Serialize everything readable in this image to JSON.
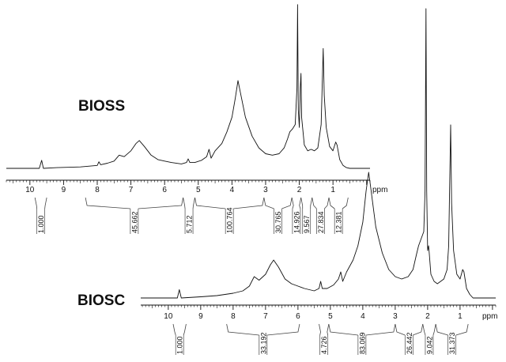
{
  "chart_data": [
    {
      "type": "line",
      "sample_label": "BIOSS",
      "axis_unit": "ppm",
      "x_reversed": true,
      "xlim": [
        10.7,
        -0.1
      ],
      "x_ticks": [
        10,
        9,
        8,
        7,
        6,
        5,
        4,
        3,
        2,
        1
      ],
      "spectrum": [
        [
          10.7,
          0.0
        ],
        [
          10.0,
          0.0
        ],
        [
          9.72,
          0.0
        ],
        [
          9.65,
          0.055
        ],
        [
          9.6,
          0.0
        ],
        [
          9.2,
          0.005
        ],
        [
          8.5,
          0.01
        ],
        [
          8.0,
          0.02
        ],
        [
          7.95,
          0.045
        ],
        [
          7.9,
          0.025
        ],
        [
          7.7,
          0.035
        ],
        [
          7.5,
          0.05
        ],
        [
          7.35,
          0.09
        ],
        [
          7.2,
          0.08
        ],
        [
          7.0,
          0.12
        ],
        [
          6.85,
          0.17
        ],
        [
          6.75,
          0.19
        ],
        [
          6.6,
          0.15
        ],
        [
          6.4,
          0.09
        ],
        [
          6.2,
          0.06
        ],
        [
          6.0,
          0.05
        ],
        [
          5.8,
          0.04
        ],
        [
          5.5,
          0.03
        ],
        [
          5.35,
          0.04
        ],
        [
          5.3,
          0.065
        ],
        [
          5.25,
          0.04
        ],
        [
          5.1,
          0.04
        ],
        [
          4.9,
          0.055
        ],
        [
          4.75,
          0.08
        ],
        [
          4.68,
          0.13
        ],
        [
          4.62,
          0.07
        ],
        [
          4.5,
          0.12
        ],
        [
          4.3,
          0.17
        ],
        [
          4.15,
          0.25
        ],
        [
          4.0,
          0.35
        ],
        [
          3.9,
          0.48
        ],
        [
          3.82,
          0.6
        ],
        [
          3.75,
          0.52
        ],
        [
          3.6,
          0.35
        ],
        [
          3.4,
          0.22
        ],
        [
          3.2,
          0.14
        ],
        [
          3.0,
          0.1
        ],
        [
          2.8,
          0.09
        ],
        [
          2.6,
          0.1
        ],
        [
          2.45,
          0.14
        ],
        [
          2.35,
          0.2
        ],
        [
          2.28,
          0.25
        ],
        [
          2.2,
          0.27
        ],
        [
          2.12,
          0.3
        ],
        [
          2.07,
          0.55
        ],
        [
          2.05,
          1.12
        ],
        [
          2.03,
          0.4
        ],
        [
          2.0,
          0.28
        ],
        [
          1.97,
          0.55
        ],
        [
          1.95,
          0.65
        ],
        [
          1.93,
          0.35
        ],
        [
          1.85,
          0.16
        ],
        [
          1.75,
          0.12
        ],
        [
          1.65,
          0.13
        ],
        [
          1.55,
          0.12
        ],
        [
          1.45,
          0.14
        ],
        [
          1.35,
          0.3
        ],
        [
          1.29,
          0.82
        ],
        [
          1.26,
          0.5
        ],
        [
          1.2,
          0.28
        ],
        [
          1.1,
          0.15
        ],
        [
          1.0,
          0.12
        ],
        [
          0.92,
          0.18
        ],
        [
          0.88,
          0.16
        ],
        [
          0.8,
          0.06
        ],
        [
          0.7,
          0.02
        ],
        [
          0.6,
          0.005
        ],
        [
          0.5,
          0.0
        ],
        [
          -0.1,
          0.0
        ]
      ],
      "integrals": [
        {
          "from": 9.85,
          "to": 9.5,
          "value": "1.000"
        },
        {
          "from": 8.35,
          "to": 5.45,
          "value": "45.662"
        },
        {
          "from": 5.45,
          "to": 5.1,
          "value": "5.712"
        },
        {
          "from": 5.1,
          "to": 3.05,
          "value": "100.764"
        },
        {
          "from": 3.05,
          "to": 2.22,
          "value": "30.765"
        },
        {
          "from": 2.22,
          "to": 1.95,
          "value": "14.926"
        },
        {
          "from": 1.95,
          "to": 1.62,
          "value": "9.567"
        },
        {
          "from": 1.62,
          "to": 1.12,
          "value": "27.834"
        },
        {
          "from": 1.12,
          "to": 0.55,
          "value": "12.381"
        }
      ]
    },
    {
      "type": "line",
      "sample_label": "BIOSC",
      "axis_unit": "ppm",
      "x_reversed": true,
      "xlim": [
        10.85,
        -0.1
      ],
      "x_ticks": [
        10,
        9,
        8,
        7,
        6,
        5,
        4,
        3,
        2,
        1
      ],
      "spectrum": [
        [
          10.85,
          0.0
        ],
        [
          10.0,
          0.0
        ],
        [
          9.72,
          0.0
        ],
        [
          9.66,
          0.035
        ],
        [
          9.6,
          0.0
        ],
        [
          9.0,
          0.005
        ],
        [
          8.5,
          0.01
        ],
        [
          8.0,
          0.02
        ],
        [
          7.7,
          0.03
        ],
        [
          7.5,
          0.05
        ],
        [
          7.35,
          0.09
        ],
        [
          7.2,
          0.075
        ],
        [
          7.0,
          0.1
        ],
        [
          6.85,
          0.14
        ],
        [
          6.75,
          0.16
        ],
        [
          6.6,
          0.13
        ],
        [
          6.4,
          0.08
        ],
        [
          6.2,
          0.06
        ],
        [
          6.0,
          0.05
        ],
        [
          5.8,
          0.04
        ],
        [
          5.5,
          0.03
        ],
        [
          5.35,
          0.04
        ],
        [
          5.3,
          0.07
        ],
        [
          5.25,
          0.04
        ],
        [
          5.1,
          0.04
        ],
        [
          4.9,
          0.055
        ],
        [
          4.75,
          0.08
        ],
        [
          4.68,
          0.11
        ],
        [
          4.62,
          0.07
        ],
        [
          4.5,
          0.11
        ],
        [
          4.3,
          0.16
        ],
        [
          4.15,
          0.22
        ],
        [
          4.0,
          0.32
        ],
        [
          3.9,
          0.45
        ],
        [
          3.82,
          0.53
        ],
        [
          3.75,
          0.46
        ],
        [
          3.6,
          0.3
        ],
        [
          3.4,
          0.19
        ],
        [
          3.2,
          0.12
        ],
        [
          3.0,
          0.09
        ],
        [
          2.8,
          0.08
        ],
        [
          2.6,
          0.09
        ],
        [
          2.45,
          0.12
        ],
        [
          2.35,
          0.18
        ],
        [
          2.28,
          0.22
        ],
        [
          2.2,
          0.25
        ],
        [
          2.12,
          0.28
        ],
        [
          2.08,
          0.45
        ],
        [
          2.05,
          1.22
        ],
        [
          2.03,
          0.45
        ],
        [
          2.0,
          0.2
        ],
        [
          1.97,
          0.22
        ],
        [
          1.95,
          0.19
        ],
        [
          1.9,
          0.1
        ],
        [
          1.8,
          0.07
        ],
        [
          1.7,
          0.06
        ],
        [
          1.6,
          0.07
        ],
        [
          1.5,
          0.08
        ],
        [
          1.4,
          0.12
        ],
        [
          1.35,
          0.22
        ],
        [
          1.29,
          0.73
        ],
        [
          1.26,
          0.4
        ],
        [
          1.2,
          0.2
        ],
        [
          1.1,
          0.1
        ],
        [
          1.0,
          0.08
        ],
        [
          0.92,
          0.12
        ],
        [
          0.88,
          0.11
        ],
        [
          0.8,
          0.04
        ],
        [
          0.7,
          0.015
        ],
        [
          0.6,
          0.0
        ],
        [
          -0.1,
          0.0
        ]
      ],
      "integrals": [
        {
          "from": 9.85,
          "to": 9.45,
          "value": "1.000"
        },
        {
          "from": 8.2,
          "to": 5.95,
          "value": "33.192"
        },
        {
          "from": 5.35,
          "to": 5.05,
          "value": "4.726"
        },
        {
          "from": 5.05,
          "to": 3.0,
          "value": "83.069"
        },
        {
          "from": 3.0,
          "to": 2.15,
          "value": "26.442"
        },
        {
          "from": 2.15,
          "to": 1.75,
          "value": "9.042"
        },
        {
          "from": 1.75,
          "to": 0.75,
          "value": "31.373"
        }
      ]
    }
  ]
}
